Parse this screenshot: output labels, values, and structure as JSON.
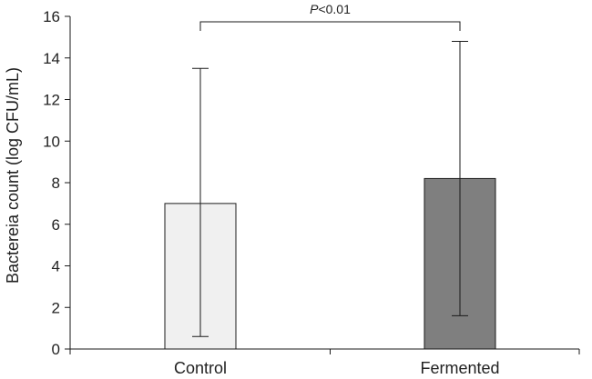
{
  "chart_data": {
    "type": "bar",
    "title": "",
    "categories": [
      "Control",
      "Fermented"
    ],
    "values": [
      7.0,
      8.2
    ],
    "error_bars": [
      {
        "lower": 0.6,
        "upper": 13.5
      },
      {
        "lower": 1.6,
        "upper": 14.8
      }
    ],
    "bar_colors": [
      "#f0f0f0",
      "#7f7f7f"
    ],
    "xlabel": "",
    "ylabel": "Bactereia count (log CFU/mL)",
    "ylim": [
      0,
      16
    ],
    "yticks": [
      0,
      2,
      4,
      6,
      8,
      10,
      12,
      14,
      16
    ],
    "grid": false,
    "annotation": {
      "type": "significance-bracket",
      "between": [
        "Control",
        "Fermented"
      ],
      "p_symbol": "P",
      "p_text": "<0.01"
    }
  }
}
